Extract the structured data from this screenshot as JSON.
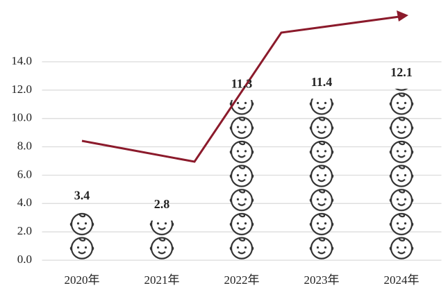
{
  "chart_data": {
    "type": "pictograph",
    "categories": [
      "2020年",
      "2021年",
      "2022年",
      "2023年",
      "2024年"
    ],
    "values": [
      3.4,
      2.8,
      11.3,
      11.4,
      12.1
    ],
    "ylim": [
      0,
      14
    ],
    "yticks": [
      {
        "value": 0,
        "label": "0.0"
      },
      {
        "value": 2,
        "label": "2.0"
      },
      {
        "value": 4,
        "label": "4.0"
      },
      {
        "value": 6,
        "label": "6.0"
      },
      {
        "value": 8,
        "label": "8.0"
      },
      {
        "value": 10,
        "label": "10.0"
      },
      {
        "value": 12,
        "label": "12.0"
      },
      {
        "value": 14,
        "label": "14.0"
      }
    ],
    "grid": true
  }
}
